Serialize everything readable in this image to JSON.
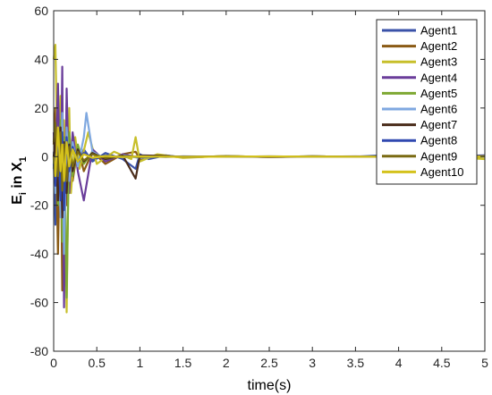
{
  "chart_data": {
    "type": "line",
    "title": "",
    "xlabel": "time(s)",
    "ylabel": "E_i in X_1",
    "ylabel_main": "E",
    "ylabel_sub": "i",
    "ylabel_mid": " in X",
    "ylabel_sub2": "1",
    "xlim": [
      0,
      5
    ],
    "ylim": [
      -80,
      60
    ],
    "xticks": [
      0,
      0.5,
      1,
      1.5,
      2,
      2.5,
      3,
      3.5,
      4,
      4.5,
      5
    ],
    "xtick_labels": [
      "0",
      "0.5",
      "1",
      "1.5",
      "2",
      "2.5",
      "3",
      "3.5",
      "4",
      "4.5",
      "5"
    ],
    "yticks": [
      -80,
      -60,
      -40,
      -20,
      0,
      20,
      40,
      60
    ],
    "ytick_labels": [
      "-80",
      "-60",
      "-40",
      "-20",
      "0",
      "20",
      "40",
      "60"
    ],
    "grid": false,
    "legend_position": "top-right",
    "series": [
      {
        "name": "Agent1",
        "color": "#3a52a8",
        "x": [
          0,
          0.02,
          0.05,
          0.08,
          0.1,
          0.12,
          0.15,
          0.18,
          0.22,
          0.28,
          0.35,
          0.45,
          0.6,
          0.8,
          0.95,
          1.0,
          1.1,
          1.3,
          1.5,
          2.0,
          2.5,
          3.0,
          3.5,
          3.8,
          4.0,
          4.5,
          5.0
        ],
        "y": [
          0,
          -28,
          14,
          -10,
          8,
          -30,
          22,
          -8,
          5,
          -4,
          3,
          -2,
          1.5,
          -1,
          -5,
          1,
          -1,
          0.5,
          -0.3,
          0.2,
          -0.1,
          0.1,
          0,
          0.5,
          0,
          0.1,
          0.5
        ]
      },
      {
        "name": "Agent2",
        "color": "#8a5a14",
        "x": [
          0,
          0.02,
          0.05,
          0.08,
          0.1,
          0.12,
          0.15,
          0.18,
          0.22,
          0.28,
          0.35,
          0.45,
          0.6,
          0.8,
          0.95,
          1.0,
          1.2,
          1.5,
          2.0,
          2.5,
          3.0,
          3.5,
          4.0,
          4.5,
          5.0
        ],
        "y": [
          5,
          20,
          -40,
          18,
          -55,
          12,
          -20,
          6,
          -10,
          4,
          -6,
          2,
          -3,
          1,
          2,
          -1,
          0.5,
          -0.3,
          0.2,
          -0.1,
          0.1,
          0,
          0.1,
          0,
          0.2
        ]
      },
      {
        "name": "Agent3",
        "color": "#c7bf2a",
        "x": [
          0,
          0.02,
          0.05,
          0.08,
          0.1,
          0.12,
          0.15,
          0.18,
          0.2,
          0.25,
          0.3,
          0.4,
          0.5,
          0.7,
          0.9,
          0.95,
          1.0,
          1.2,
          1.5,
          2.0,
          2.5,
          3.0,
          3.5,
          4.0,
          4.5,
          5.0
        ],
        "y": [
          40,
          46,
          -10,
          25,
          -30,
          15,
          -64,
          20,
          -15,
          8,
          -5,
          10,
          -3,
          2,
          -1,
          8,
          -2,
          1,
          -0.5,
          0.3,
          -0.2,
          0.1,
          0,
          0.2,
          0,
          -1
        ]
      },
      {
        "name": "Agent4",
        "color": "#6a3d9a",
        "x": [
          0,
          0.02,
          0.05,
          0.08,
          0.1,
          0.12,
          0.15,
          0.18,
          0.22,
          0.28,
          0.35,
          0.45,
          0.6,
          0.8,
          1.0,
          1.3,
          1.5,
          2.0,
          2.5,
          3.0,
          3.5,
          4.0,
          4.5,
          5.0
        ],
        "y": [
          10,
          -5,
          30,
          -20,
          37,
          -62,
          28,
          -15,
          10,
          -6,
          -18,
          3,
          -2,
          1,
          -0.5,
          0.3,
          -0.2,
          0.1,
          -0.1,
          0,
          0.1,
          0,
          0.1,
          0
        ]
      },
      {
        "name": "Agent5",
        "color": "#7ea832",
        "x": [
          0,
          0.02,
          0.05,
          0.08,
          0.1,
          0.12,
          0.15,
          0.18,
          0.22,
          0.28,
          0.35,
          0.45,
          0.6,
          0.8,
          1.0,
          1.3,
          1.5,
          2.0,
          2.5,
          3.0,
          3.5,
          4.0,
          4.5,
          5.0
        ],
        "y": [
          -5,
          12,
          -20,
          15,
          -35,
          8,
          -58,
          10,
          -8,
          5,
          -3,
          2,
          -1,
          0.5,
          -0.5,
          0.3,
          -0.2,
          0.1,
          0,
          0.1,
          0,
          0.1,
          0,
          0
        ]
      },
      {
        "name": "Agent6",
        "color": "#7fa8e0",
        "x": [
          0,
          0.02,
          0.05,
          0.08,
          0.1,
          0.12,
          0.15,
          0.18,
          0.22,
          0.28,
          0.35,
          0.38,
          0.45,
          0.6,
          0.8,
          1.0,
          1.3,
          1.5,
          2.0,
          2.5,
          3.0,
          3.5,
          4.0,
          4.5,
          5.0
        ],
        "y": [
          2,
          -15,
          10,
          -25,
          18,
          -40,
          12,
          -10,
          6,
          -4,
          8,
          18,
          2,
          -1,
          0.5,
          -0.5,
          0.3,
          -0.2,
          0.1,
          0,
          0.1,
          0,
          0.1,
          0,
          0
        ]
      },
      {
        "name": "Agent7",
        "color": "#4a2c1a",
        "x": [
          0,
          0.02,
          0.05,
          0.08,
          0.1,
          0.12,
          0.15,
          0.18,
          0.22,
          0.28,
          0.35,
          0.45,
          0.6,
          0.8,
          0.95,
          1.0,
          1.3,
          1.5,
          2.0,
          2.5,
          3.0,
          3.5,
          4.0,
          4.5,
          5.0
        ],
        "y": [
          0,
          8,
          -18,
          12,
          -25,
          6,
          -15,
          5,
          -6,
          3,
          -2,
          1.5,
          -1,
          0.5,
          -9,
          0.5,
          0.3,
          -0.2,
          0.1,
          0,
          0.1,
          0,
          0.1,
          0,
          0
        ]
      },
      {
        "name": "Agent8",
        "color": "#3048b0",
        "x": [
          0,
          0.02,
          0.05,
          0.08,
          0.1,
          0.12,
          0.15,
          0.18,
          0.22,
          0.28,
          0.35,
          0.45,
          0.6,
          0.8,
          1.0,
          1.3,
          1.5,
          2.0,
          2.5,
          3.0,
          3.5,
          4.0,
          4.5,
          5.0
        ],
        "y": [
          -3,
          -12,
          6,
          -18,
          10,
          -22,
          8,
          -6,
          4,
          -2,
          1.5,
          -1,
          0.5,
          -0.3,
          0.2,
          -0.1,
          0.1,
          0,
          0.1,
          0,
          0,
          0,
          0,
          0
        ]
      },
      {
        "name": "Agent9",
        "color": "#7a6a12",
        "x": [
          0,
          0.02,
          0.05,
          0.08,
          0.1,
          0.12,
          0.15,
          0.18,
          0.22,
          0.28,
          0.35,
          0.45,
          0.6,
          0.8,
          1.0,
          1.3,
          1.5,
          2.0,
          2.5,
          3.0,
          3.5,
          4.0,
          4.5,
          5.0
        ],
        "y": [
          6,
          14,
          -8,
          10,
          -14,
          5,
          -10,
          4,
          -4,
          2,
          -1.5,
          1,
          -0.5,
          0.3,
          -0.2,
          0.1,
          0,
          0.1,
          0,
          0.1,
          0,
          0,
          0,
          0
        ]
      },
      {
        "name": "Agent10",
        "color": "#d4c21c",
        "x": [
          0,
          0.02,
          0.05,
          0.08,
          0.1,
          0.12,
          0.15,
          0.18,
          0.22,
          0.28,
          0.35,
          0.45,
          0.6,
          0.8,
          1.0,
          1.2,
          1.5,
          2.0,
          2.5,
          3.0,
          3.5,
          4.0,
          4.5,
          5.0
        ],
        "y": [
          0,
          -8,
          12,
          -6,
          5,
          -10,
          6,
          -4,
          3,
          -2,
          1,
          -0.5,
          0.3,
          -0.2,
          0.1,
          0,
          -0.1,
          0,
          0.1,
          0,
          0,
          0,
          0,
          0
        ]
      }
    ]
  }
}
